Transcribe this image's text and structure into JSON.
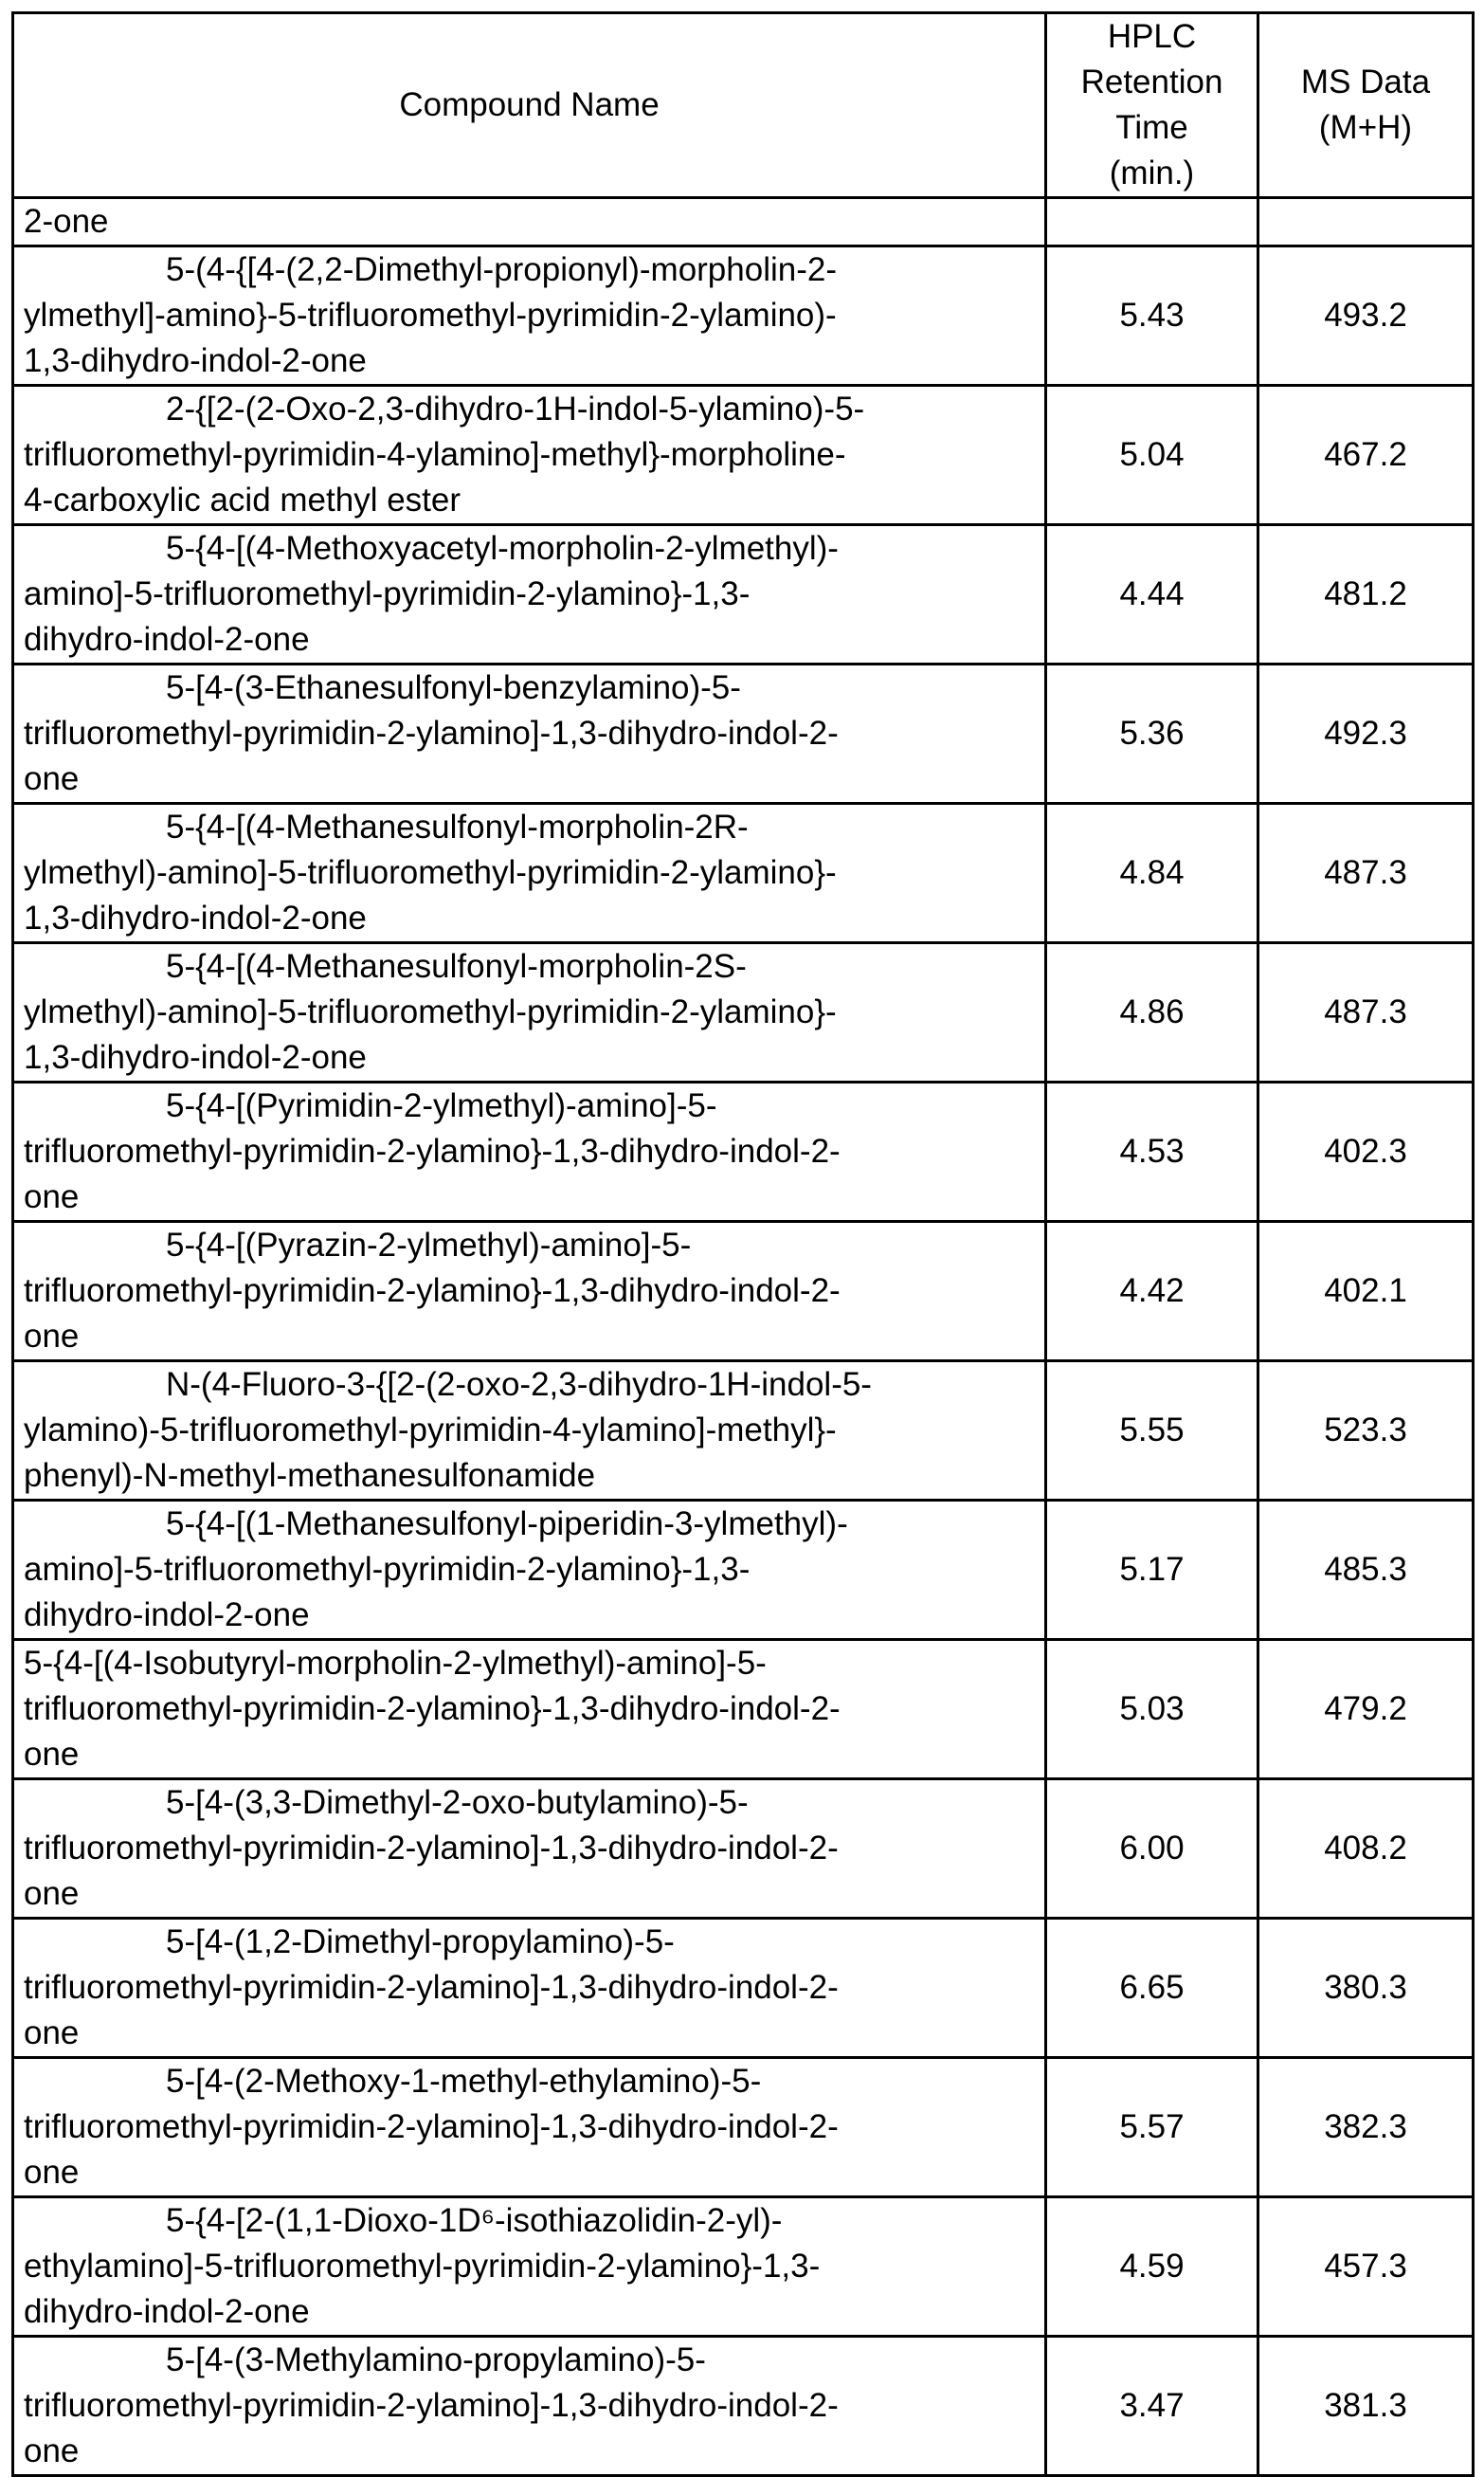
{
  "header": {
    "compound_name": "Compound Name",
    "hplc": [
      "HPLC",
      "Retention",
      "Time",
      "(min.)"
    ],
    "ms": [
      "MS Data",
      "(M+H)"
    ]
  },
  "continuation_row": {
    "name_lines": [
      "2-one"
    ],
    "hplc": "",
    "ms": ""
  },
  "rows": [
    {
      "name_lines": [
        "5-(4-{[4-(2,2-Dimethyl-propionyl)-morpholin-2-",
        "ylmethyl]-amino}-5-trifluoromethyl-pyrimidin-2-ylamino)-",
        "1,3-dihydro-indol-2-one"
      ],
      "hplc": "5.43",
      "ms": "493.2"
    },
    {
      "name_lines": [
        "2-{[2-(2-Oxo-2,3-dihydro-1H-indol-5-ylamino)-5-",
        "trifluoromethyl-pyrimidin-4-ylamino]-methyl}-morpholine-",
        "4-carboxylic acid methyl ester"
      ],
      "hplc": "5.04",
      "ms": "467.2"
    },
    {
      "name_lines": [
        "5-{4-[(4-Methoxyacetyl-morpholin-2-ylmethyl)-",
        "amino]-5-trifluoromethyl-pyrimidin-2-ylamino}-1,3-",
        "dihydro-indol-2-one"
      ],
      "hplc": "4.44",
      "ms": "481.2"
    },
    {
      "name_lines": [
        "5-[4-(3-Ethanesulfonyl-benzylamino)-5-",
        "trifluoromethyl-pyrimidin-2-ylamino]-1,3-dihydro-indol-2-",
        "one"
      ],
      "hplc": "5.36",
      "ms": "492.3"
    },
    {
      "name_lines": [
        "5-{4-[(4-Methanesulfonyl-morpholin-2R-",
        "ylmethyl)-amino]-5-trifluoromethyl-pyrimidin-2-ylamino}-",
        "1,3-dihydro-indol-2-one"
      ],
      "hplc": "4.84",
      "ms": "487.3"
    },
    {
      "name_lines": [
        "5-{4-[(4-Methanesulfonyl-morpholin-2S-",
        "ylmethyl)-amino]-5-trifluoromethyl-pyrimidin-2-ylamino}-",
        "1,3-dihydro-indol-2-one"
      ],
      "hplc": "4.86",
      "ms": "487.3"
    },
    {
      "name_lines": [
        "5-{4-[(Pyrimidin-2-ylmethyl)-amino]-5-",
        "trifluoromethyl-pyrimidin-2-ylamino}-1,3-dihydro-indol-2-",
        "one"
      ],
      "hplc": "4.53",
      "ms": "402.3"
    },
    {
      "name_lines": [
        "5-{4-[(Pyrazin-2-ylmethyl)-amino]-5-",
        "trifluoromethyl-pyrimidin-2-ylamino}-1,3-dihydro-indol-2-",
        "one"
      ],
      "hplc": "4.42",
      "ms": "402.1"
    },
    {
      "name_lines": [
        "N-(4-Fluoro-3-{[2-(2-oxo-2,3-dihydro-1H-indol-5-",
        "ylamino)-5-trifluoromethyl-pyrimidin-4-ylamino]-methyl}-",
        "phenyl)-N-methyl-methanesulfonamide"
      ],
      "hplc": "5.55",
      "ms": "523.3"
    },
    {
      "name_lines": [
        "5-{4-[(1-Methanesulfonyl-piperidin-3-ylmethyl)-",
        "amino]-5-trifluoromethyl-pyrimidin-2-ylamino}-1,3-",
        "dihydro-indol-2-one"
      ],
      "hplc": "5.17",
      "ms": "485.3"
    },
    {
      "name_lines": [
        "5-{4-[(4-Isobutyryl-morpholin-2-ylmethyl)-amino]-5-",
        "trifluoromethyl-pyrimidin-2-ylamino}-1,3-dihydro-indol-2-",
        "one"
      ],
      "hplc": "5.03",
      "ms": "479.2"
    },
    {
      "name_lines": [
        "5-[4-(3,3-Dimethyl-2-oxo-butylamino)-5-",
        "trifluoromethyl-pyrimidin-2-ylamino]-1,3-dihydro-indol-2-",
        "one"
      ],
      "hplc": "6.00",
      "ms": "408.2"
    },
    {
      "name_lines": [
        "5-[4-(1,2-Dimethyl-propylamino)-5-",
        "trifluoromethyl-pyrimidin-2-ylamino]-1,3-dihydro-indol-2-",
        "one"
      ],
      "hplc": "6.65",
      "ms": "380.3"
    },
    {
      "name_lines": [
        "5-[4-(2-Methoxy-1-methyl-ethylamino)-5-",
        "trifluoromethyl-pyrimidin-2-ylamino]-1,3-dihydro-indol-2-",
        "one"
      ],
      "hplc": "5.57",
      "ms": "382.3"
    },
    {
      "name_lines": [
        "5-{4-[2-(1,1-Dioxo-1D⁶-isothiazolidin-2-yl)-",
        "ethylamino]-5-trifluoromethyl-pyrimidin-2-ylamino}-1,3-",
        "dihydro-indol-2-one"
      ],
      "hplc": "4.59",
      "ms": "457.3"
    },
    {
      "name_lines": [
        "5-[4-(3-Methylamino-propylamino)-5-",
        "trifluoromethyl-pyrimidin-2-ylamino]-1,3-dihydro-indol-2-",
        "one"
      ],
      "hplc": "3.47",
      "ms": "381.3"
    }
  ]
}
